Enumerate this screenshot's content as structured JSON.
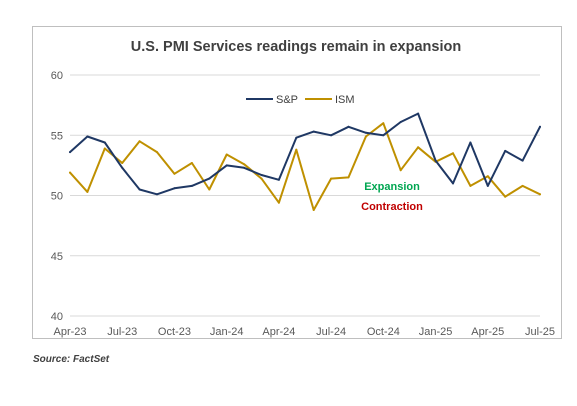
{
  "chart_data": {
    "type": "line",
    "title": "U.S. PMI Services readings remain in expansion",
    "xlabel": "",
    "ylabel": "",
    "ylim": [
      40,
      60
    ],
    "yticks": [
      40,
      45,
      50,
      55,
      60
    ],
    "grid": true,
    "legend_position": "top-center",
    "x_tick_labels": [
      "Apr-23",
      "Jul-23",
      "Oct-23",
      "Jan-24",
      "Apr-24",
      "Jul-24",
      "Oct-24",
      "Jan-25",
      "Apr-25",
      "Jul-25"
    ],
    "x": [
      "Apr-23",
      "May-23",
      "Jun-23",
      "Jul-23",
      "Aug-23",
      "Sep-23",
      "Oct-23",
      "Nov-23",
      "Dec-23",
      "Jan-24",
      "Feb-24",
      "Mar-24",
      "Apr-24",
      "May-24",
      "Jun-24",
      "Jul-24",
      "Aug-24",
      "Sep-24",
      "Oct-24",
      "Nov-24",
      "Dec-24",
      "Jan-25",
      "Feb-25",
      "Mar-25",
      "Apr-25",
      "May-25",
      "Jun-25",
      "Jul-25"
    ],
    "series": [
      {
        "name": "S&P",
        "color": "#1f3864",
        "values": [
          53.6,
          54.9,
          54.4,
          52.3,
          50.5,
          50.1,
          50.6,
          50.8,
          51.4,
          52.5,
          52.3,
          51.7,
          51.3,
          54.8,
          55.3,
          55.0,
          55.7,
          55.2,
          55.0,
          56.1,
          56.8,
          52.9,
          51.0,
          54.4,
          50.8,
          53.7,
          52.9,
          55.7
        ]
      },
      {
        "name": "ISM",
        "color": "#bf9000",
        "values": [
          51.9,
          50.3,
          53.9,
          52.7,
          54.5,
          53.6,
          51.8,
          52.7,
          50.5,
          53.4,
          52.6,
          51.4,
          49.4,
          53.8,
          48.8,
          51.4,
          51.5,
          54.9,
          56.0,
          52.1,
          54.0,
          52.8,
          53.5,
          50.8,
          51.6,
          49.9,
          50.8,
          50.1
        ]
      }
    ],
    "annotations": [
      {
        "text": "Expansion",
        "color": "#00a651"
      },
      {
        "text": "Contraction",
        "color": "#c00000"
      }
    ]
  },
  "source": "Source: FactSet"
}
